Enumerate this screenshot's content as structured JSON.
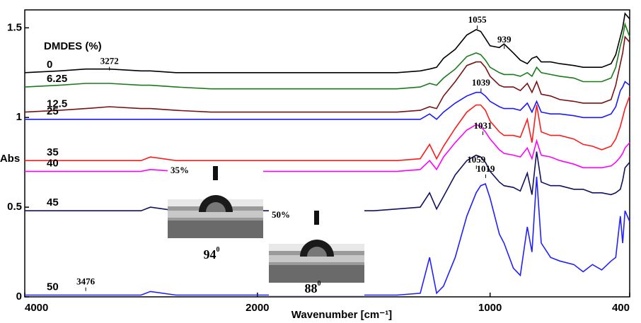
{
  "chart_data": {
    "type": "line",
    "x_label": "Wavenumber [cm⁻¹]",
    "y_label": "Abs",
    "legend_title": "DMDES (%)",
    "xlim": [
      4000,
      400
    ],
    "x_break": {
      "at": 2000,
      "stretch": 2
    },
    "xticks": [
      4000,
      2000,
      1000,
      400
    ],
    "ylim": [
      0,
      1.6
    ],
    "yticks": [
      0,
      0.5,
      1,
      1.5
    ],
    "x": [
      4000,
      3700,
      3476,
      3272,
      3000,
      2920,
      2700,
      2400,
      2200,
      2000,
      1800,
      1700,
      1640,
      1500,
      1400,
      1300,
      1260,
      1230,
      1200,
      1150,
      1100,
      1060,
      1040,
      1020,
      1000,
      960,
      940,
      900,
      870,
      840,
      820,
      800,
      780,
      740,
      700,
      640,
      600,
      560,
      520,
      480,
      460,
      440,
      430,
      420,
      400
    ],
    "series": [
      {
        "name": "0",
        "color": "#000000",
        "values": [
          1.25,
          1.26,
          1.27,
          1.27,
          1.26,
          1.26,
          1.25,
          1.25,
          1.25,
          1.25,
          1.25,
          1.25,
          1.25,
          1.25,
          1.25,
          1.26,
          1.27,
          1.28,
          1.33,
          1.38,
          1.46,
          1.49,
          1.48,
          1.44,
          1.4,
          1.39,
          1.41,
          1.36,
          1.32,
          1.3,
          1.33,
          1.34,
          1.31,
          1.31,
          1.3,
          1.29,
          1.28,
          1.28,
          1.28,
          1.3,
          1.35,
          1.45,
          1.5,
          1.58,
          1.55
        ]
      },
      {
        "name": "6.25",
        "color": "#1a7a1a",
        "values": [
          1.17,
          1.18,
          1.19,
          1.19,
          1.18,
          1.18,
          1.17,
          1.16,
          1.16,
          1.16,
          1.16,
          1.16,
          1.16,
          1.16,
          1.16,
          1.17,
          1.19,
          1.18,
          1.22,
          1.27,
          1.34,
          1.36,
          1.35,
          1.32,
          1.28,
          1.25,
          1.24,
          1.24,
          1.23,
          1.25,
          1.23,
          1.28,
          1.25,
          1.24,
          1.23,
          1.22,
          1.2,
          1.2,
          1.2,
          1.22,
          1.28,
          1.4,
          1.45,
          1.52,
          1.45
        ]
      },
      {
        "name": "12.5",
        "color": "#7a1010",
        "values": [
          1.03,
          1.04,
          1.05,
          1.06,
          1.05,
          1.05,
          1.04,
          1.03,
          1.03,
          1.03,
          1.03,
          1.03,
          1.03,
          1.03,
          1.03,
          1.04,
          1.06,
          1.05,
          1.12,
          1.2,
          1.29,
          1.31,
          1.31,
          1.28,
          1.23,
          1.18,
          1.17,
          1.17,
          1.15,
          1.19,
          1.14,
          1.2,
          1.13,
          1.12,
          1.1,
          1.09,
          1.08,
          1.08,
          1.08,
          1.1,
          1.18,
          1.3,
          1.36,
          1.45,
          1.42
        ]
      },
      {
        "name": "25",
        "color": "#1a1aff",
        "values": [
          0.99,
          0.99,
          0.99,
          0.99,
          0.99,
          0.99,
          0.99,
          0.99,
          0.99,
          0.99,
          0.99,
          0.99,
          0.99,
          0.99,
          0.99,
          0.99,
          1.02,
          0.99,
          1.03,
          1.08,
          1.12,
          1.14,
          1.14,
          1.12,
          1.09,
          1.06,
          1.05,
          1.05,
          1.04,
          1.08,
          1.03,
          1.09,
          1.03,
          1.02,
          1.02,
          1.01,
          1.0,
          1.0,
          1.0,
          1.02,
          1.06,
          1.15,
          1.17,
          1.2,
          1.18
        ]
      },
      {
        "name": "35",
        "color": "#ff1a1a",
        "values": [
          0.76,
          0.76,
          0.76,
          0.76,
          0.76,
          0.78,
          0.76,
          0.76,
          0.76,
          0.76,
          0.76,
          0.76,
          0.76,
          0.76,
          0.76,
          0.77,
          0.85,
          0.77,
          0.84,
          0.94,
          1.03,
          1.07,
          1.07,
          1.04,
          0.98,
          0.92,
          0.9,
          0.9,
          0.89,
          0.99,
          0.86,
          1.07,
          0.92,
          0.9,
          0.9,
          0.88,
          0.85,
          0.84,
          0.82,
          0.84,
          0.88,
          0.95,
          1.0,
          1.05,
          1.12
        ]
      },
      {
        "name": "40",
        "color": "#ff00ff",
        "values": [
          0.7,
          0.7,
          0.7,
          0.7,
          0.7,
          0.71,
          0.7,
          0.7,
          0.7,
          0.7,
          0.7,
          0.7,
          0.7,
          0.7,
          0.7,
          0.71,
          0.76,
          0.71,
          0.78,
          0.86,
          0.93,
          0.96,
          0.95,
          0.92,
          0.88,
          0.82,
          0.8,
          0.79,
          0.78,
          0.83,
          0.77,
          0.87,
          0.79,
          0.78,
          0.76,
          0.74,
          0.72,
          0.72,
          0.72,
          0.73,
          0.75,
          0.78,
          0.8,
          0.83,
          0.86
        ]
      },
      {
        "name": "45",
        "color": "#101060",
        "values": [
          0.48,
          0.48,
          0.48,
          0.48,
          0.48,
          0.5,
          0.48,
          0.48,
          0.48,
          0.48,
          0.48,
          0.48,
          0.48,
          0.48,
          0.49,
          0.5,
          0.58,
          0.49,
          0.56,
          0.68,
          0.76,
          0.79,
          0.78,
          0.75,
          0.7,
          0.64,
          0.62,
          0.61,
          0.59,
          0.69,
          0.57,
          0.81,
          0.64,
          0.62,
          0.62,
          0.6,
          0.6,
          0.58,
          0.58,
          0.57,
          0.58,
          0.6,
          0.65,
          0.72,
          0.75
        ]
      },
      {
        "name": "50",
        "color": "#2020ff",
        "values": [
          0.01,
          0.01,
          0.01,
          0.01,
          0.01,
          0.03,
          0.01,
          0.01,
          0.01,
          0.01,
          0.01,
          0.01,
          0.01,
          0.01,
          0.01,
          0.02,
          0.22,
          0.02,
          0.06,
          0.22,
          0.45,
          0.58,
          0.62,
          0.63,
          0.55,
          0.35,
          0.3,
          0.16,
          0.12,
          0.39,
          0.25,
          0.67,
          0.3,
          0.22,
          0.2,
          0.18,
          0.14,
          0.18,
          0.15,
          0.2,
          0.22,
          0.45,
          0.3,
          0.48,
          0.42
        ]
      }
    ],
    "annotations": [
      {
        "text": "1055",
        "x": 1055,
        "y": 1.54
      },
      {
        "text": "939",
        "x": 939,
        "y": 1.43
      },
      {
        "text": "3272",
        "x": 3272,
        "y": 1.31
      },
      {
        "text": "1039",
        "x": 1039,
        "y": 1.19
      },
      {
        "text": "1031",
        "x": 1031,
        "y": 0.95
      },
      {
        "text": "1059",
        "x": 1059,
        "y": 0.76
      },
      {
        "text": "1019",
        "x": 1019,
        "y": 0.71
      },
      {
        "text": "3476",
        "x": 3476,
        "y": 0.08
      }
    ],
    "insets": [
      {
        "label": "35%",
        "angle": "94",
        "sup": "0"
      },
      {
        "label": "50%",
        "angle": "88",
        "sup": "0"
      }
    ]
  }
}
